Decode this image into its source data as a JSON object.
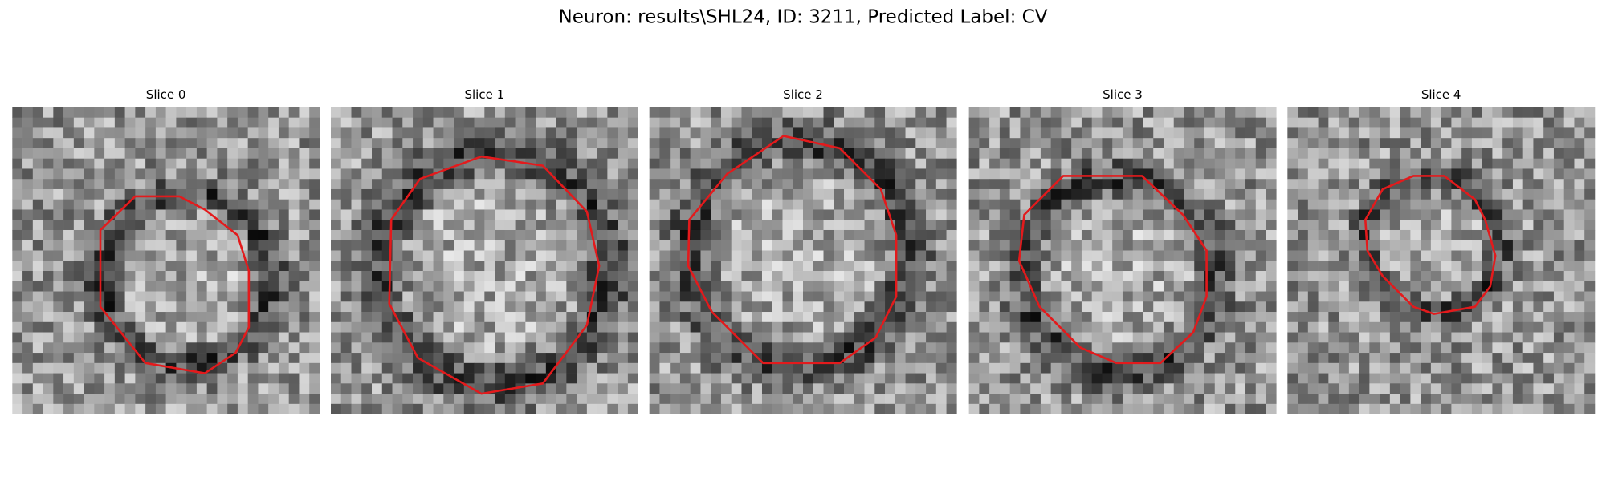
{
  "title": "Neuron: results\\SHL24, ID: 3211, Predicted Label: CV",
  "slices": [
    {
      "title": "Slice 0"
    },
    {
      "title": "Slice 1"
    },
    {
      "title": "Slice 2"
    },
    {
      "title": "Slice 3"
    },
    {
      "title": "Slice 4"
    }
  ]
}
